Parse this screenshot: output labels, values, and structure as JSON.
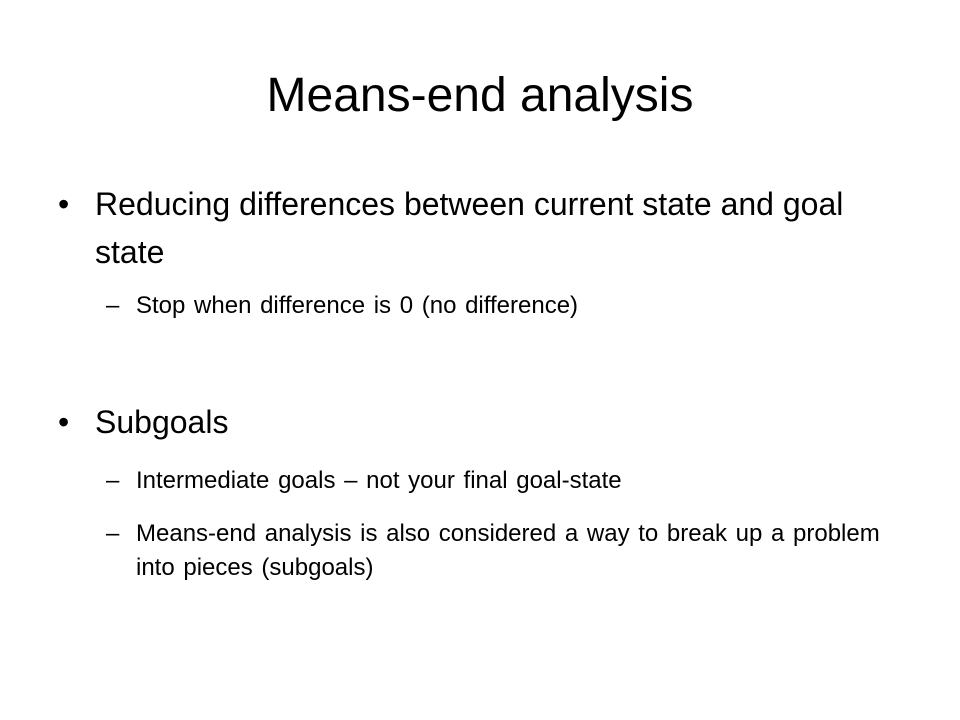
{
  "slide": {
    "title": "Means-end analysis",
    "bullet_marker": "•",
    "sub_marker": "–",
    "bullets": [
      {
        "text": "Reducing differences between current state and goal state",
        "subs": [
          "Stop when difference is 0 (no difference)"
        ]
      },
      {
        "text": "Subgoals",
        "subs": [
          "Intermediate goals – not your final goal-state",
          "Means-end analysis is also considered a way to break up a problem into pieces (subgoals)"
        ]
      }
    ]
  }
}
